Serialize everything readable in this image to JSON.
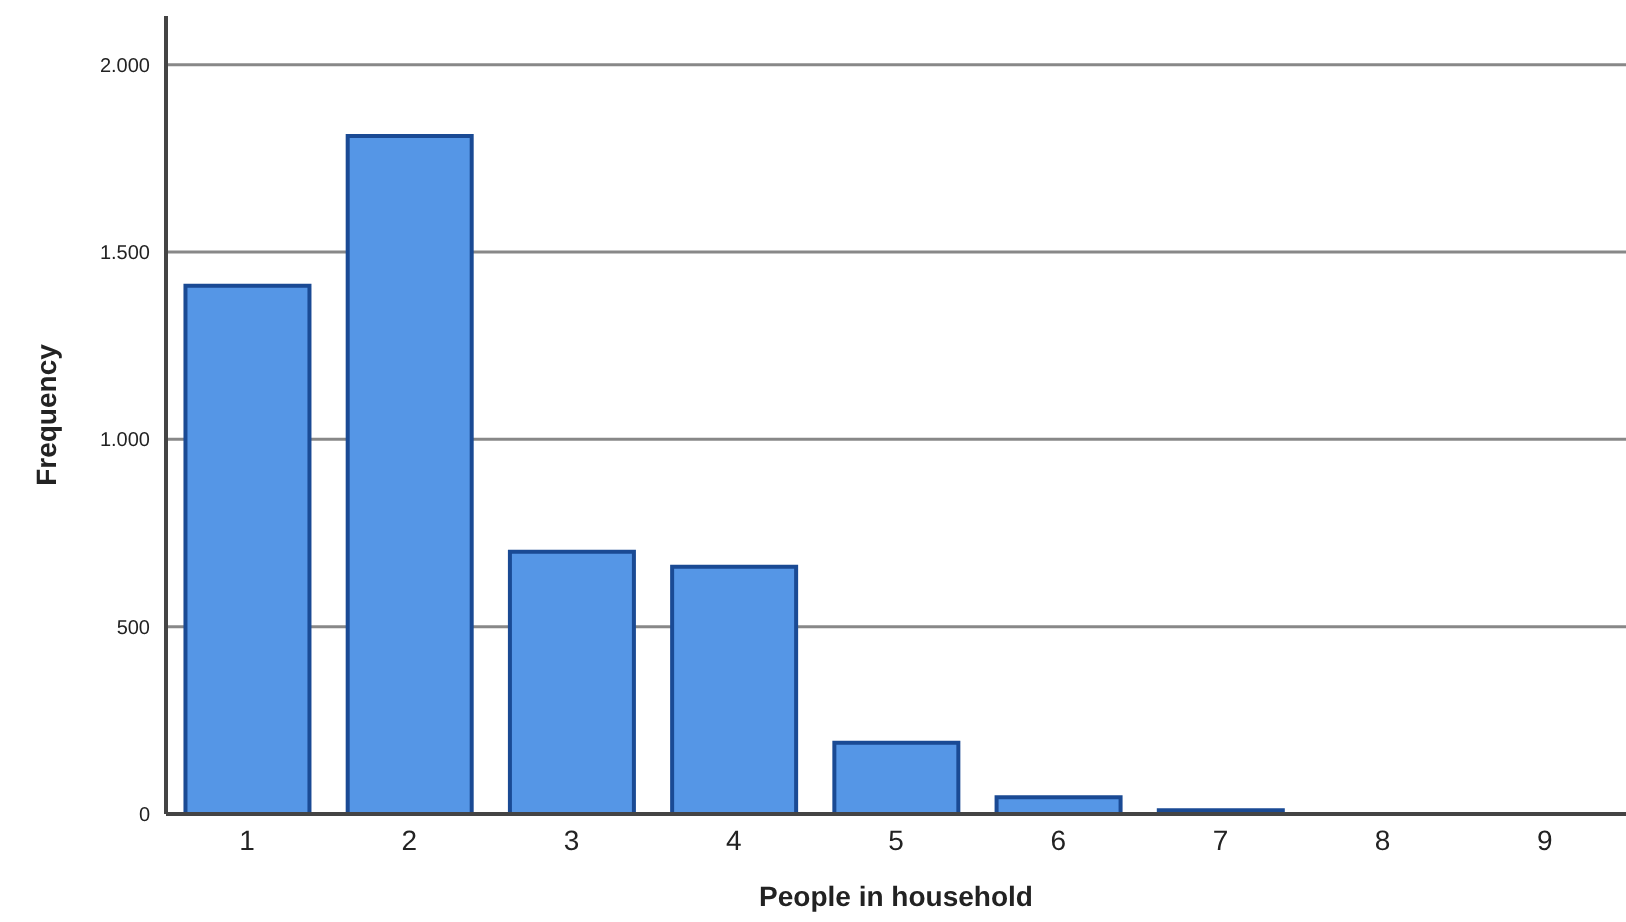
{
  "chart_data": {
    "type": "bar",
    "xlabel": "People in household",
    "ylabel": "Frequency",
    "categories": [
      "1",
      "2",
      "3",
      "4",
      "5",
      "6",
      "7",
      "8",
      "9"
    ],
    "values": [
      1410,
      1810,
      700,
      660,
      190,
      45,
      10,
      0,
      0
    ],
    "color": "#5596e6",
    "ylim": [
      0,
      2130
    ],
    "yticks": [
      {
        "value": 0,
        "label": "0"
      },
      {
        "value": 500,
        "label": "500"
      },
      {
        "value": 1000,
        "label": "1.000"
      },
      {
        "value": 1500,
        "label": "1.500"
      },
      {
        "value": 2000,
        "label": "2.000"
      }
    ],
    "grid": "y"
  }
}
